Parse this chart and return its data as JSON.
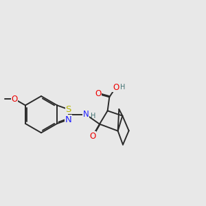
{
  "bg_color": "#e8e8e8",
  "bond_color": "#2a2a2a",
  "bond_lw": 1.4,
  "colors": {
    "S": "#b8b800",
    "N": "#2020ff",
    "O": "#ee0000",
    "H": "#407070",
    "C": "#2a2a2a"
  },
  "fs": 8.5
}
